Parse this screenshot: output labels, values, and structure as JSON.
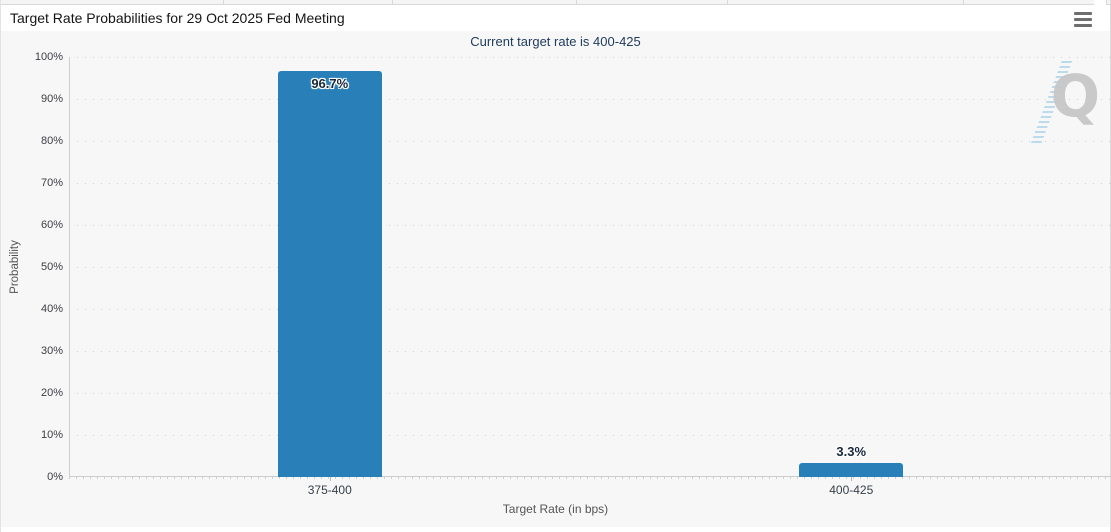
{
  "header": {
    "title": "Target Rate Probabilities for 29 Oct 2025 Fed Meeting",
    "menu_icon": "hamburger-icon"
  },
  "chart_data": {
    "type": "bar",
    "title": "Current target rate is 400-425",
    "categories": [
      "375-400",
      "400-425"
    ],
    "values": [
      96.7,
      3.3
    ],
    "value_labels": [
      "96.7%",
      "3.3%"
    ],
    "xlabel": "Target Rate (in bps)",
    "ylabel": "Probability",
    "ylim": [
      0,
      100
    ],
    "ytick_step": 10,
    "ytick_suffix": "%",
    "grid": true,
    "legend_position": "none",
    "bar_color": "#2980b9"
  },
  "watermark": {
    "text": "Q"
  },
  "colors": {
    "bar": "#2980b9",
    "chart_background": "#f7f7f7",
    "header_background": "#ffffff",
    "subtitle_text": "#1e3a5f",
    "axis_text": "#3d3d44",
    "gridline": "#cecece",
    "value_label_text": "#16283c"
  }
}
